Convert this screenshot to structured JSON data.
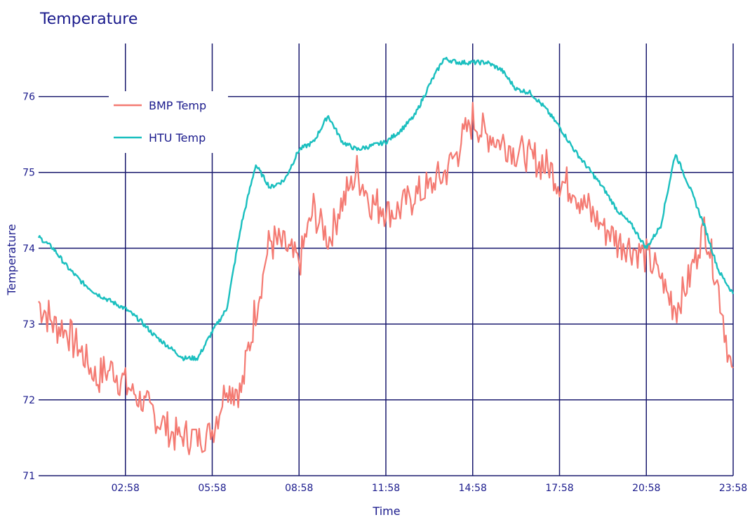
{
  "chart_data": {
    "type": "line",
    "title": "Temperature",
    "xlabel": "Time",
    "ylabel": "Temperature",
    "x_ticks": [
      "02:58",
      "05:58",
      "08:58",
      "11:58",
      "14:58",
      "17:58",
      "20:58",
      "23:58"
    ],
    "y_ticks": [
      71,
      72,
      73,
      74,
      75,
      76
    ],
    "ylim": [
      71,
      76.7
    ],
    "grid": true,
    "legend_position": "top-left",
    "x_hours": [
      0,
      0.5,
      1,
      1.5,
      2,
      2.5,
      3,
      3.5,
      4,
      4.5,
      5,
      5.5,
      6,
      6.5,
      7,
      7.5,
      8,
      8.5,
      9,
      9.5,
      10,
      10.5,
      11,
      11.5,
      12,
      12.5,
      13,
      13.5,
      14,
      14.5,
      15,
      15.5,
      16,
      16.5,
      17,
      17.5,
      18,
      18.5,
      19,
      19.5,
      20,
      20.5,
      21,
      21.5,
      22,
      22.5,
      23,
      23.5,
      24
    ],
    "series": [
      {
        "name": "BMP Temp",
        "color": "#f47a72",
        "values": [
          73.3,
          73.0,
          72.9,
          72.6,
          72.3,
          72.4,
          72.2,
          72.0,
          71.8,
          71.6,
          71.5,
          71.5,
          71.6,
          72.2,
          72.1,
          73.2,
          74.1,
          74.0,
          73.8,
          74.5,
          74.1,
          74.6,
          75.0,
          74.6,
          74.5,
          74.5,
          74.7,
          74.8,
          75.0,
          75.3,
          75.7,
          75.5,
          75.4,
          75.3,
          75.2,
          75.1,
          74.9,
          74.8,
          74.5,
          74.3,
          74.1,
          74.0,
          73.9,
          73.6,
          73.2,
          73.6,
          74.3,
          73.5,
          72.2
        ],
        "annotations": {
          "max": 76.2,
          "min": 71.2
        }
      },
      {
        "name": "HTU Temp",
        "color": "#1abfbf",
        "values": [
          74.15,
          74.0,
          73.75,
          73.55,
          73.4,
          73.3,
          73.2,
          73.05,
          72.85,
          72.7,
          72.55,
          72.55,
          72.9,
          73.2,
          74.3,
          75.1,
          74.8,
          74.9,
          75.3,
          75.4,
          75.75,
          75.4,
          75.3,
          75.35,
          75.4,
          75.55,
          75.75,
          76.15,
          76.5,
          76.45,
          76.45,
          76.45,
          76.35,
          76.1,
          76.05,
          75.85,
          75.6,
          75.3,
          75.05,
          74.8,
          74.5,
          74.3,
          74.0,
          74.3,
          75.25,
          74.8,
          74.3,
          73.7,
          73.4
        ]
      }
    ]
  }
}
